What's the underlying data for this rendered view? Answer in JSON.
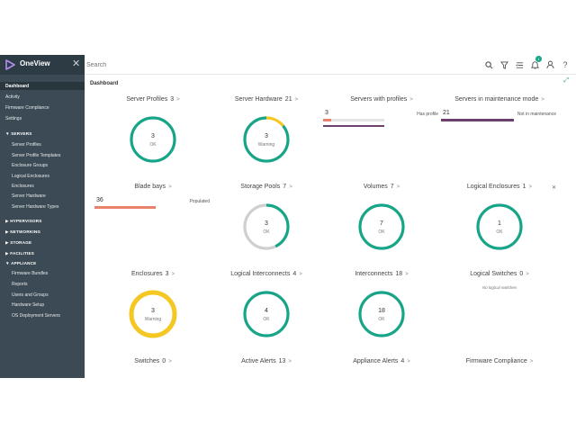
{
  "app": {
    "name": "OneView",
    "search_placeholder": "Search",
    "colors": {
      "sidebar": "#3b4a54",
      "brand": "#2d3b45",
      "ok": "#17a589",
      "warning": "#f5c722",
      "neutral": "#cfcfcf",
      "populated": "#e8826a",
      "maintenance": "#6c3f6f"
    }
  },
  "toolbar": {
    "icons": [
      "search-icon",
      "filter-icon",
      "activity-icon",
      "notifications-icon",
      "user-icon",
      "help-icon"
    ],
    "notification_count": "1"
  },
  "sidebar": {
    "top_items": [
      {
        "label": "Dashboard",
        "active": true
      },
      {
        "label": "Activity"
      },
      {
        "label": "Firmware Compliance"
      },
      {
        "label": "Settings"
      }
    ],
    "sections": [
      {
        "label": "SERVERS",
        "expanded": true,
        "items": [
          "Server Profiles",
          "Server Profile Templates",
          "Enclosure Groups",
          "Logical Enclosures",
          "Enclosures",
          "Server Hardware",
          "Server Hardware Types"
        ]
      },
      {
        "label": "HYPERVISORS",
        "expanded": false,
        "items": []
      },
      {
        "label": "NETWORKING",
        "expanded": false,
        "items": []
      },
      {
        "label": "STORAGE",
        "expanded": false,
        "items": []
      },
      {
        "label": "FACILITIES",
        "expanded": false,
        "items": []
      },
      {
        "label": "APPLIANCE",
        "expanded": true,
        "items": [
          "Firmware Bundles",
          "Reports",
          "Users and Groups",
          "Hardware Setup",
          "OS Deployment Servers"
        ]
      }
    ]
  },
  "main": {
    "breadcrumb": "Dashboard",
    "cards": [
      {
        "title": "Server Profiles",
        "count": "3",
        "type": "ring",
        "value": "3",
        "status": "OK",
        "fraction_ok": 1.0,
        "fraction_warning": 0
      },
      {
        "title": "Server Hardware",
        "count": "21",
        "type": "ring",
        "value": "3",
        "status": "Warning",
        "fraction_ok": 0.86,
        "fraction_warning": 0.14
      },
      {
        "title": "Servers with profiles",
        "count": "",
        "type": "bar",
        "value": "3",
        "bar_label": "Has profile",
        "fraction": 0.14
      },
      {
        "title": "Servers in maintenance mode",
        "count": "",
        "type": "bar",
        "value": "21",
        "bar_label": "Not in maintenance",
        "fraction": 1.0
      },
      {
        "title": "Blade bays",
        "count": "",
        "type": "bar",
        "value": "36",
        "bar_label": "Populated",
        "fraction": 1.0
      },
      {
        "title": "Storage Pools",
        "count": "7",
        "type": "ring",
        "value": "3",
        "status": "OK",
        "fraction_ok": 0.43,
        "fraction_warning": 0
      },
      {
        "title": "Volumes",
        "count": "7",
        "type": "ring",
        "value": "7",
        "status": "OK",
        "fraction_ok": 1.0,
        "fraction_warning": 0
      },
      {
        "title": "Logical Enclosures",
        "count": "1",
        "type": "ring",
        "value": "1",
        "status": "OK",
        "fraction_ok": 1.0,
        "fraction_warning": 0,
        "closable": true
      },
      {
        "title": "Enclosures",
        "count": "3",
        "type": "ring",
        "value": "3",
        "status": "Warning",
        "fraction_ok": 0,
        "fraction_warning": 1.0
      },
      {
        "title": "Logical Interconnects",
        "count": "4",
        "type": "ring",
        "value": "4",
        "status": "OK",
        "fraction_ok": 1.0,
        "fraction_warning": 0
      },
      {
        "title": "Interconnects",
        "count": "18",
        "type": "ring",
        "value": "18",
        "status": "OK",
        "fraction_ok": 1.0,
        "fraction_warning": 0
      },
      {
        "title": "Logical Switches",
        "count": "0",
        "type": "empty",
        "note": "No logical switches"
      },
      {
        "title": "Switches",
        "count": "0",
        "type": "none"
      },
      {
        "title": "Active Alerts",
        "count": "13",
        "type": "none"
      },
      {
        "title": "Appliance Alerts",
        "count": "4",
        "type": "none"
      },
      {
        "title": "Firmware Compliance",
        "count": "",
        "type": "none"
      }
    ]
  }
}
